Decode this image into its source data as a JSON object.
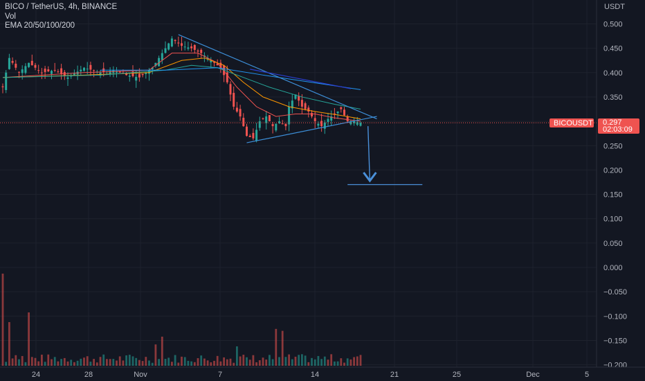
{
  "legend": {
    "title": "BICO / TetherUS, 4h, BINANCE",
    "vol": "Vol",
    "ema": "EMA 20/50/100/200"
  },
  "colors": {
    "background": "#131722",
    "grid": "#1e222d",
    "up": "#26a69a",
    "down": "#ef5350",
    "drawing": "#2962ff",
    "arrow": "#4a90d9",
    "ema20": "#ef5350",
    "ema50": "#ff9800",
    "ema100": "#26a69a",
    "ema200": "#2196f3",
    "price_line": "#ef5350",
    "axis_text": "#b2b5be"
  },
  "price_badge": {
    "symbol": "BICOUSDT",
    "price": "0.297",
    "countdown": "02:03:09"
  },
  "chart_data": {
    "type": "candlestick",
    "unit_label": "USDT",
    "ylim": [
      -0.2,
      0.53
    ],
    "y_ticks": [
      "0.500",
      "0.450",
      "0.400",
      "0.350",
      "0.300",
      "0.250",
      "0.200",
      "0.150",
      "0.100",
      "0.050",
      "0.000",
      "−0.050",
      "−0.100",
      "−0.150",
      "−0.200"
    ],
    "y_tick_values": [
      0.5,
      0.45,
      0.4,
      0.35,
      0.3,
      0.25,
      0.2,
      0.15,
      0.1,
      0.05,
      0,
      -0.05,
      -0.1,
      -0.15,
      -0.2
    ],
    "x_ticks": [
      "24",
      "28",
      "Nov",
      "7",
      "14",
      "21",
      "25",
      "Dec",
      "5"
    ],
    "last_price": 0.297,
    "price_path": [
      [
        0,
        0.37
      ],
      [
        2,
        0.43
      ],
      [
        5,
        0.4
      ],
      [
        8,
        0.42
      ],
      [
        12,
        0.4
      ],
      [
        16,
        0.405
      ],
      [
        20,
        0.39
      ],
      [
        25,
        0.41
      ],
      [
        30,
        0.4
      ],
      [
        34,
        0.405
      ],
      [
        38,
        0.395
      ],
      [
        42,
        0.39
      ],
      [
        46,
        0.41
      ],
      [
        49,
        0.44
      ],
      [
        52,
        0.47
      ],
      [
        55,
        0.455
      ],
      [
        58,
        0.45
      ],
      [
        61,
        0.44
      ],
      [
        64,
        0.425
      ],
      [
        67,
        0.41
      ],
      [
        69,
        0.38
      ],
      [
        71,
        0.33
      ],
      [
        73,
        0.31
      ],
      [
        75,
        0.27
      ],
      [
        77,
        0.265
      ],
      [
        79,
        0.3
      ],
      [
        81,
        0.31
      ],
      [
        83,
        0.29
      ],
      [
        85,
        0.3
      ],
      [
        87,
        0.29
      ],
      [
        88,
        0.33
      ],
      [
        90,
        0.355
      ],
      [
        92,
        0.33
      ],
      [
        94,
        0.32
      ],
      [
        96,
        0.3
      ],
      [
        98,
        0.29
      ],
      [
        100,
        0.305
      ],
      [
        102,
        0.315
      ],
      [
        104,
        0.325
      ],
      [
        106,
        0.3
      ],
      [
        108,
        0.3
      ],
      [
        110,
        0.297
      ]
    ],
    "ema20": [
      [
        0,
        0.39
      ],
      [
        25,
        0.4
      ],
      [
        45,
        0.405
      ],
      [
        52,
        0.44
      ],
      [
        60,
        0.44
      ],
      [
        66,
        0.42
      ],
      [
        72,
        0.37
      ],
      [
        78,
        0.33
      ],
      [
        84,
        0.31
      ],
      [
        90,
        0.315
      ],
      [
        96,
        0.315
      ],
      [
        102,
        0.307
      ],
      [
        110,
        0.3
      ]
    ],
    "ema50": [
      [
        0,
        0.39
      ],
      [
        25,
        0.395
      ],
      [
        45,
        0.4
      ],
      [
        55,
        0.425
      ],
      [
        62,
        0.43
      ],
      [
        68,
        0.415
      ],
      [
        74,
        0.38
      ],
      [
        80,
        0.35
      ],
      [
        88,
        0.33
      ],
      [
        96,
        0.32
      ],
      [
        104,
        0.312
      ],
      [
        110,
        0.305
      ]
    ],
    "ema100": [
      [
        0,
        0.39
      ],
      [
        30,
        0.395
      ],
      [
        50,
        0.405
      ],
      [
        58,
        0.415
      ],
      [
        66,
        0.41
      ],
      [
        74,
        0.39
      ],
      [
        82,
        0.37
      ],
      [
        92,
        0.35
      ],
      [
        102,
        0.335
      ],
      [
        110,
        0.325
      ]
    ],
    "ema200": [
      [
        30,
        0.405
      ],
      [
        50,
        0.405
      ],
      [
        66,
        0.41
      ],
      [
        80,
        0.395
      ],
      [
        90,
        0.385
      ],
      [
        100,
        0.375
      ],
      [
        110,
        0.365
      ]
    ],
    "trendlines": [
      {
        "from": [
          54,
          0.478
        ],
        "to": [
          115,
          0.305
        ]
      },
      {
        "from": [
          75,
          0.256
        ],
        "to": [
          115,
          0.31
        ]
      },
      {
        "from": [
          76,
          0.407
        ],
        "to": [
          107,
          0.367
        ]
      }
    ],
    "target_line": {
      "from_x": 106,
      "to_x": 129,
      "y": 0.17
    },
    "arrow": {
      "x_from": 111,
      "x_to": 112,
      "y_from": 0.29,
      "y_to": 0.175
    },
    "volume_spikes": [
      {
        "i": 0,
        "v": 0.95
      },
      {
        "i": 2,
        "v": 0.45
      },
      {
        "i": 8,
        "v": 0.55
      },
      {
        "i": 47,
        "v": 0.22
      },
      {
        "i": 49,
        "v": 0.3
      },
      {
        "i": 72,
        "v": 0.2
      },
      {
        "i": 84,
        "v": 0.38
      },
      {
        "i": 86,
        "v": 0.36
      }
    ]
  }
}
